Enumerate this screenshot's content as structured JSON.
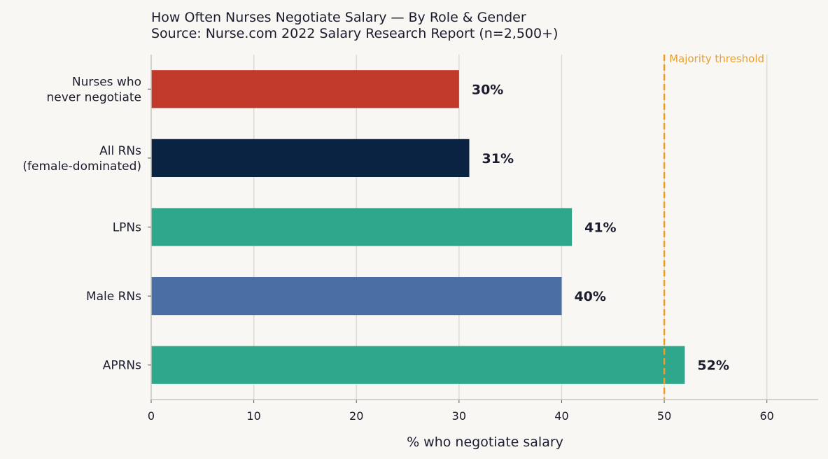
{
  "chart_data": {
    "type": "bar",
    "orientation": "horizontal",
    "title": "How Often Nurses Negotiate Salary — By Role & Gender",
    "subtitle": "Source: Nurse.com 2022 Salary Research Report (n=2,500+)",
    "xlabel": "% who negotiate salary",
    "ylabel": "",
    "xlim": [
      0,
      65
    ],
    "xticks": [
      0,
      10,
      20,
      30,
      40,
      50,
      60
    ],
    "grid": true,
    "bars": [
      {
        "label_lines": [
          "Nurses who",
          "never negotiate"
        ],
        "value": 30,
        "value_label": "30%",
        "color": "#c0392b"
      },
      {
        "label_lines": [
          "All RNs",
          "(female-dominated)"
        ],
        "value": 31,
        "value_label": "31%",
        "color": "#0b2342"
      },
      {
        "label_lines": [
          "LPNs"
        ],
        "value": 41,
        "value_label": "41%",
        "color": "#2ea78c"
      },
      {
        "label_lines": [
          "Male RNs"
        ],
        "value": 40,
        "value_label": "40%",
        "color": "#4a6fa5"
      },
      {
        "label_lines": [
          "APRNs"
        ],
        "value": 52,
        "value_label": "52%",
        "color": "#2ea78c"
      }
    ],
    "reference_line": {
      "value": 50,
      "label": "Majority threshold",
      "color": "#e8a030",
      "style": "dashed"
    }
  }
}
